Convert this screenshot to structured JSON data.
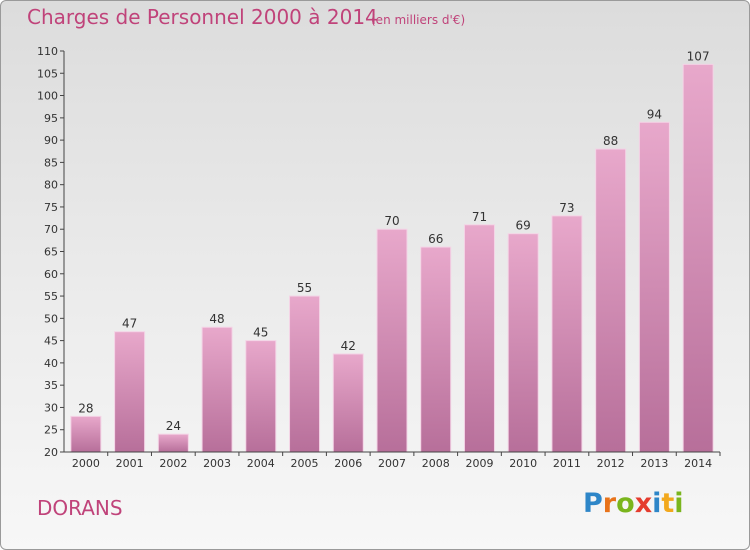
{
  "chart_data": {
    "type": "bar",
    "title": "Charges de Personnel 2000 à 2014",
    "subtitle": "(en milliers d'€)",
    "categories": [
      "2000",
      "2001",
      "2002",
      "2003",
      "2004",
      "2005",
      "2006",
      "2007",
      "2008",
      "2009",
      "2010",
      "2011",
      "2012",
      "2013",
      "2014"
    ],
    "values": [
      28,
      47,
      24,
      48,
      45,
      55,
      42,
      70,
      66,
      71,
      69,
      73,
      88,
      94,
      107
    ],
    "ylim": [
      20,
      110
    ],
    "yticks": [
      20,
      25,
      30,
      35,
      40,
      45,
      50,
      55,
      60,
      65,
      70,
      75,
      80,
      85,
      90,
      95,
      100,
      105,
      110
    ],
    "grid": false,
    "bar_color": "#d279a8",
    "xlabel": "",
    "ylabel": ""
  },
  "commune": "DORANS",
  "logo": {
    "letters": [
      "P",
      "r",
      "o",
      "x",
      "i",
      "t",
      "i"
    ],
    "colors": [
      "#2e86c8",
      "#e8731a",
      "#7ab51d",
      "#e53c2e",
      "#2e86c8",
      "#f2a81d",
      "#7ab51d"
    ]
  }
}
